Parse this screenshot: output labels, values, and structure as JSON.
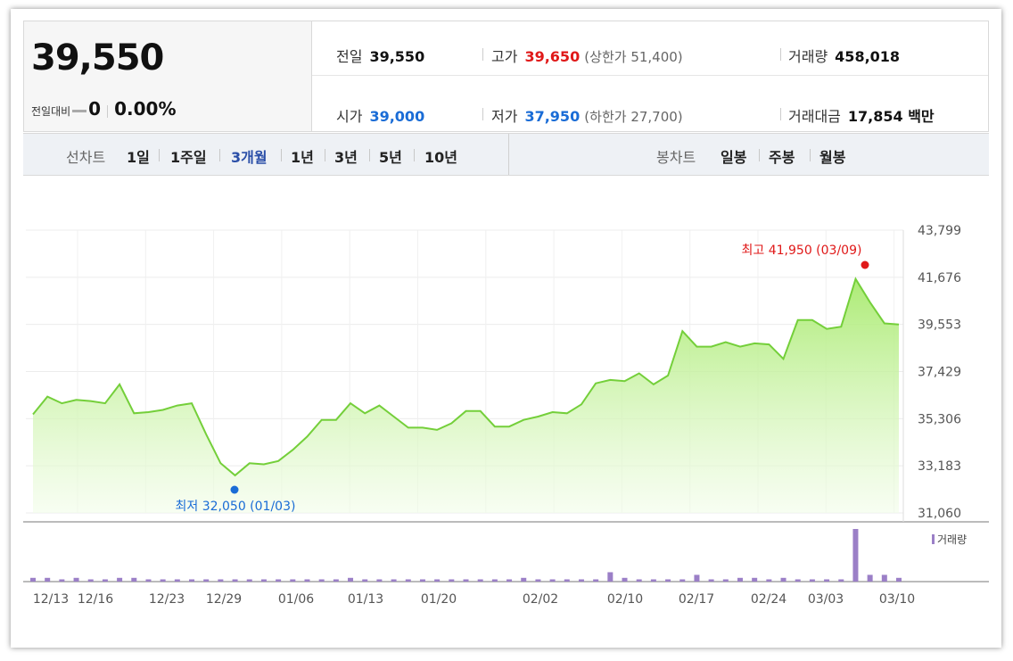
{
  "quote": {
    "price": "39,550",
    "change_label": "전일대비",
    "change_value": "0",
    "change_pct": "0.00%",
    "prev_label": "전일",
    "prev_value": "39,550",
    "high_label": "고가",
    "high_value": "39,650",
    "upper_limit": "(상한가 51,400)",
    "volume_label": "거래량",
    "volume_value": "458,018",
    "open_label": "시가",
    "open_value": "39,000",
    "low_label": "저가",
    "low_value": "37,950",
    "lower_limit": "(하한가 27,700)",
    "amount_label": "거래대금",
    "amount_value": "17,854 백만"
  },
  "line_tabs": {
    "label": "선차트",
    "items": [
      "1일",
      "1주일",
      "3개월",
      "1년",
      "3년",
      "5년",
      "10년"
    ],
    "active": "3개월"
  },
  "candle_tabs": {
    "label": "봉차트",
    "items": [
      "일봉",
      "주봉",
      "월봉"
    ]
  },
  "colors": {
    "line": "#74cf3a",
    "high": "#e01919",
    "low": "#1a6cd6",
    "volume": "#9b7fc7"
  },
  "chart_data": {
    "type": "area",
    "yticks": [
      "43,799",
      "41,676",
      "39,553",
      "37,429",
      "35,306",
      "33,183",
      "31,060"
    ],
    "ylim": [
      31060,
      43799
    ],
    "xticks": [
      "12/13",
      "12/16",
      "12/23",
      "12/29",
      "01/06",
      "01/13",
      "01/20",
      "02/02",
      "02/10",
      "02/17",
      "02/24",
      "03/03",
      "03/10"
    ],
    "high_annotation": "최고 41,950 (03/09)",
    "low_annotation": "최저 32,050 (01/03)",
    "volume_legend": "거래량",
    "price_series": [
      35500,
      36300,
      36000,
      36150,
      36100,
      36000,
      36850,
      35550,
      35600,
      35700,
      35900,
      36000,
      34600,
      33300,
      32750,
      33300,
      33250,
      33400,
      33900,
      34500,
      35250,
      35250,
      36000,
      35550,
      35900,
      35400,
      34900,
      34900,
      34800,
      35100,
      35650,
      35650,
      34950,
      34950,
      35250,
      35400,
      35600,
      35550,
      35950,
      36900,
      37050,
      37000,
      37350,
      36850,
      37250,
      39250,
      38550,
      38550,
      38750,
      38550,
      38700,
      38650,
      38000,
      39750,
      39750,
      39350,
      39450,
      41600,
      40550,
      39600,
      39550
    ],
    "volume_series": [
      1,
      1,
      0.6,
      1,
      0.6,
      0.6,
      1,
      1,
      0.6,
      0.6,
      0.6,
      0.6,
      0.6,
      0.6,
      0.6,
      0.6,
      0.6,
      0.6,
      0.6,
      0.6,
      0.6,
      0.6,
      1,
      0.6,
      0.6,
      0.6,
      0.6,
      0.6,
      0.6,
      0.6,
      0.6,
      0.6,
      0.6,
      0.6,
      1,
      0.6,
      0.6,
      0.6,
      0.6,
      0.6,
      2.5,
      1,
      0.6,
      0.6,
      0.6,
      0.6,
      1.8,
      0.6,
      0.6,
      1,
      1,
      0.6,
      1,
      0.6,
      0.6,
      0.6,
      0.6,
      14,
      1.8,
      1.8,
      1
    ]
  }
}
